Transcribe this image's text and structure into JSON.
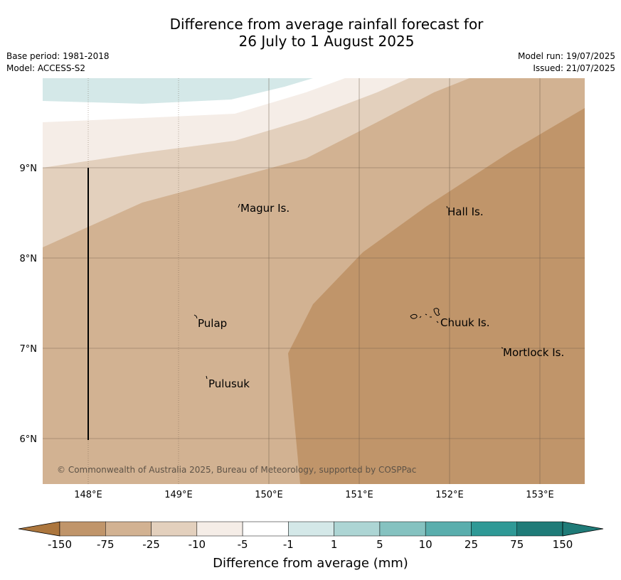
{
  "title": {
    "line1": "Difference from average rainfall forecast for",
    "line2": "26 July to 1 August 2025"
  },
  "meta_left": {
    "base_period": "Base period: 1981-2018",
    "model": "Model: ACCESS-S2"
  },
  "meta_right": {
    "model_run": "Model run: 19/07/2025",
    "issued": "Issued: 21/07/2025"
  },
  "map": {
    "lon_ticks": [
      "148°E",
      "149°E",
      "150°E",
      "151°E",
      "152°E",
      "153°E"
    ],
    "lat_ticks": [
      "9°N",
      "8°N",
      "7°N",
      "6°N"
    ],
    "places": [
      "Magur Is.",
      "Hall Is.",
      "Pulap",
      "Chuuk Is.",
      "Mortlock Is.",
      "Pulusuk"
    ],
    "copyright": "© Commonwealth of Australia 2025, Bureau of Meteorology, supported by COSPPac"
  },
  "colorbar": {
    "ticks": [
      "-150",
      "-75",
      "-25",
      "-10",
      "-5",
      "-1",
      "1",
      "5",
      "10",
      "25",
      "75",
      "150"
    ],
    "colors": [
      "#ac763d",
      "#c0956a",
      "#d2b292",
      "#e3d0bd",
      "#f5ede7",
      "#ffffff",
      "#d4e8e8",
      "#add5d4",
      "#85c2c0",
      "#5aaead",
      "#2f9996",
      "#1f7b78"
    ],
    "label": "Difference from average (mm)"
  },
  "colors": {
    "frame_bg": "#ffffff",
    "grid": "#6b5a48",
    "text": "#000000"
  }
}
